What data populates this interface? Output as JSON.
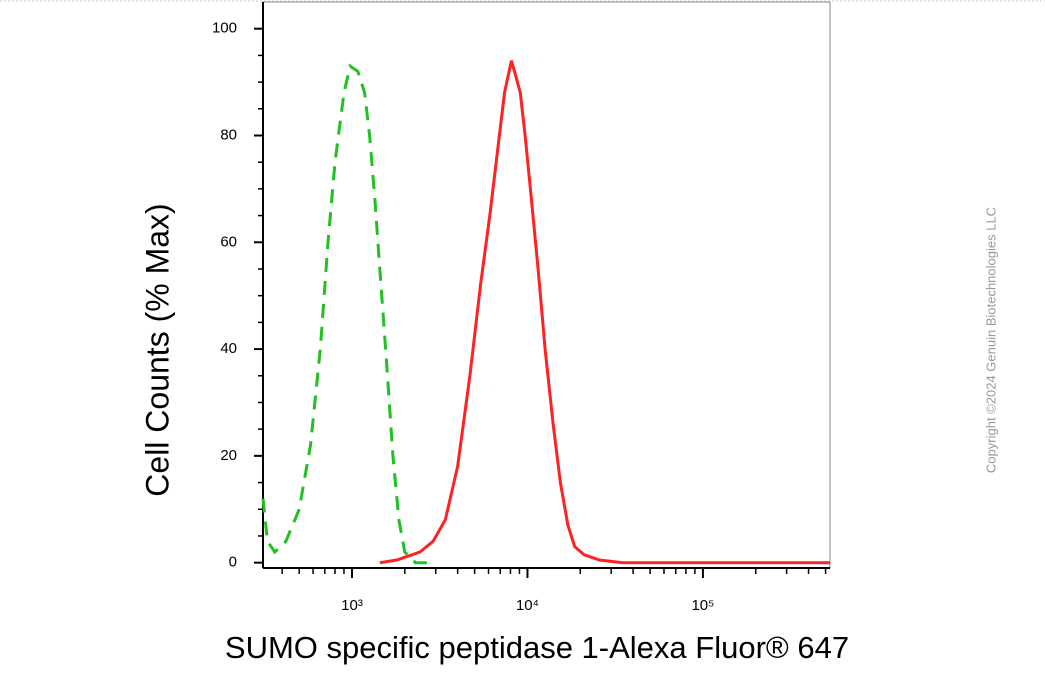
{
  "chart_data": {
    "type": "line",
    "x_label": "SUMO specific peptidase 1-Alexa Fluor® 647",
    "y_label": "Cell Counts (% Max)",
    "watermark": "Copyright ©2024 Genuin Biotechnologies LLC",
    "xscale": "log",
    "minor_ticks": true,
    "xlim": [
      311,
      530000
    ],
    "xticks": [
      {
        "value": 1000,
        "label": "10³"
      },
      {
        "value": 10000,
        "label": "10⁴"
      },
      {
        "value": 100000,
        "label": "10⁵"
      }
    ],
    "ylim": [
      -1,
      105
    ],
    "yticks": [
      0,
      20,
      40,
      60,
      80,
      100
    ],
    "series": [
      {
        "color": "#22c022",
        "style": "dashed",
        "x": [
          311,
          330,
          363,
          420,
          500,
          580,
          660,
          730,
          800,
          900,
          975,
          1080,
          1180,
          1260,
          1350,
          1440,
          1570,
          1710,
          1850,
          2000,
          2300,
          3000
        ],
        "values": [
          12,
          4,
          2,
          4,
          10,
          22,
          40,
          60,
          75,
          88,
          93,
          92,
          88,
          80,
          68,
          55,
          38,
          20,
          8,
          2,
          0,
          0
        ]
      },
      {
        "color": "#ff2222",
        "style": "solid",
        "x": [
          1440,
          1800,
          2440,
          2900,
          3400,
          4000,
          4700,
          5400,
          6100,
          6800,
          7400,
          8100,
          8600,
          9100,
          9700,
          10400,
          11500,
          12600,
          14000,
          15400,
          17000,
          18600,
          21000,
          25700,
          35000,
          100000,
          530000
        ],
        "values": [
          0,
          0.5,
          2,
          4,
          8,
          18,
          35,
          52,
          65,
          78,
          88,
          94,
          91,
          88,
          80,
          70,
          55,
          40,
          26,
          15,
          7,
          3,
          1.5,
          0.5,
          0,
          0,
          0
        ]
      }
    ]
  }
}
